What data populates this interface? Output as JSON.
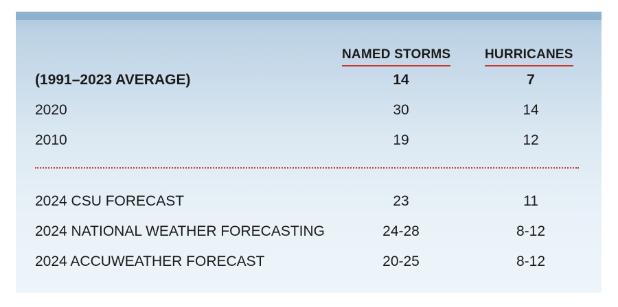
{
  "columns": {
    "named_storms": "NAMED STORMS",
    "hurricanes": "HURRICANES"
  },
  "rows": [
    {
      "label": "(1991–2023 AVERAGE)",
      "named_storms": "14",
      "hurricanes": "7"
    },
    {
      "label": "2020",
      "named_storms": "30",
      "hurricanes": "14"
    },
    {
      "label": "2010",
      "named_storms": "19",
      "hurricanes": "12"
    },
    {
      "label": "2024 CSU FORECAST",
      "named_storms": "23",
      "hurricanes": "11"
    },
    {
      "label": "2024 NATIONAL WEATHER FORECASTING",
      "named_storms": "24-28",
      "hurricanes": "8-12"
    },
    {
      "label": "2024 ACCUWEATHER FORECAST",
      "named_storms": "20-25",
      "hurricanes": "8-12"
    }
  ],
  "colors": {
    "accent_red": "#c8362b",
    "panel_top": "#a9c4dc",
    "panel_bottom": "#edf5fa"
  }
}
